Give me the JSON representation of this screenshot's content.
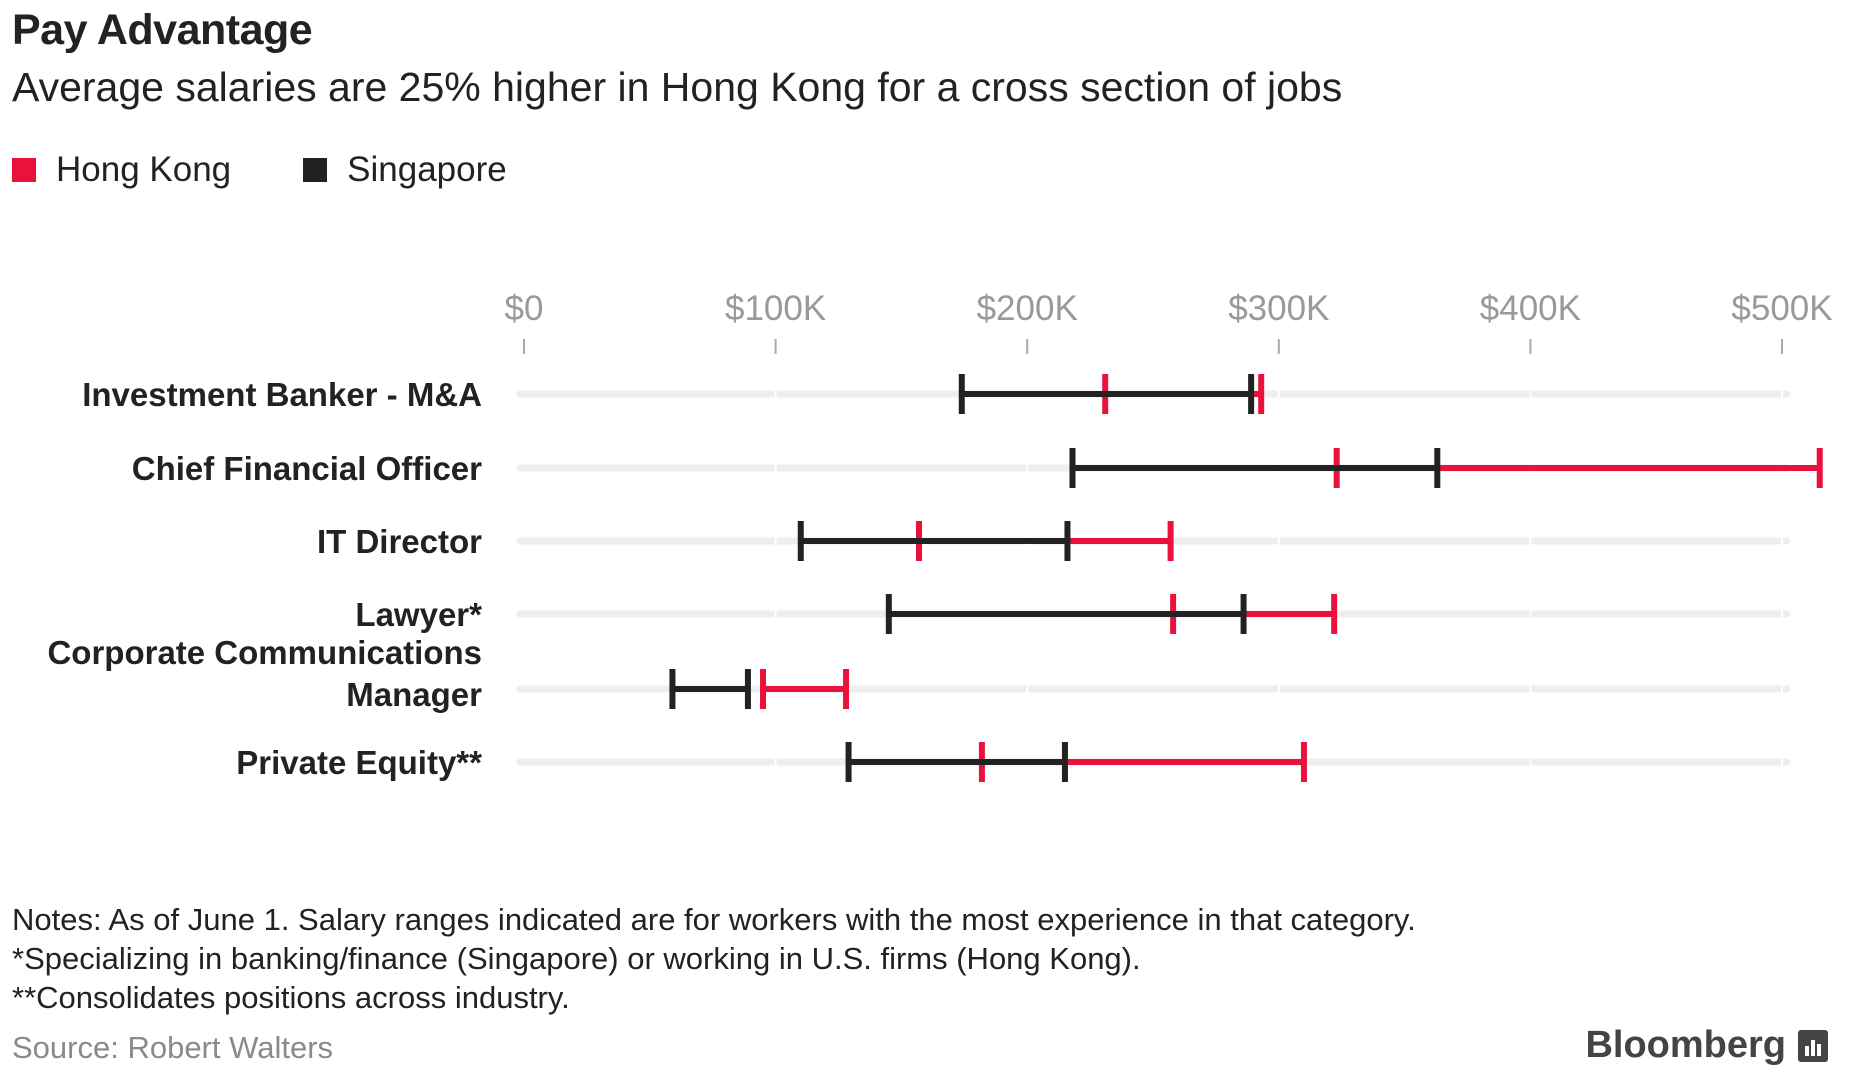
{
  "header": {
    "title": "Pay Advantage",
    "subtitle": "Average salaries are 25% higher in Hong Kong for a cross section of jobs"
  },
  "legend": {
    "items": [
      {
        "label": "Hong Kong",
        "color": "#e8123c"
      },
      {
        "label": "Singapore",
        "color": "#222222"
      }
    ]
  },
  "colors": {
    "hong_kong": "#e8123c",
    "singapore": "#222222",
    "track": "#eeeeee",
    "tick_label": "#999999"
  },
  "chart_data": {
    "type": "range",
    "xlim": [
      0,
      500000
    ],
    "x_tick_values": [
      0,
      100000,
      200000,
      300000,
      400000,
      500000
    ],
    "x_tick_labels": [
      "$0",
      "$100K",
      "$200K",
      "$300K",
      "$400K",
      "$500K"
    ],
    "categories": [
      "Investment Banker - M&A",
      "Chief Financial Officer",
      "IT Director",
      "Lawyer*",
      "Corporate Communications Manager",
      "Private Equity**"
    ],
    "category_lines": [
      [
        "Investment Banker - M&A"
      ],
      [
        "Chief Financial Officer"
      ],
      [
        "IT Director"
      ],
      [
        "Lawyer*"
      ],
      [
        "Corporate Communications",
        "Manager"
      ],
      [
        "Private Equity**"
      ]
    ],
    "series": [
      {
        "name": "Hong Kong",
        "ranges": [
          [
            231000,
            293000
          ],
          [
            323000,
            515000
          ],
          [
            157000,
            257000
          ],
          [
            258000,
            322000
          ],
          [
            95000,
            128000
          ],
          [
            182000,
            310000
          ]
        ]
      },
      {
        "name": "Singapore",
        "ranges": [
          [
            174000,
            289000
          ],
          [
            218000,
            363000
          ],
          [
            110000,
            216000
          ],
          [
            145000,
            286000
          ],
          [
            59000,
            89000
          ],
          [
            129000,
            215000
          ]
        ]
      }
    ]
  },
  "notes": {
    "lines": [
      "Notes: As of June 1. Salary ranges indicated are for workers with the most experience in that category.",
      "*Specializing in banking/finance (Singapore) or working in U.S. firms (Hong Kong).",
      "**Consolidates positions across industry."
    ]
  },
  "source": {
    "label": "Source: Robert Walters"
  },
  "brand": {
    "name": "Bloomberg",
    "icon": "bloomberg-chart-icon"
  }
}
